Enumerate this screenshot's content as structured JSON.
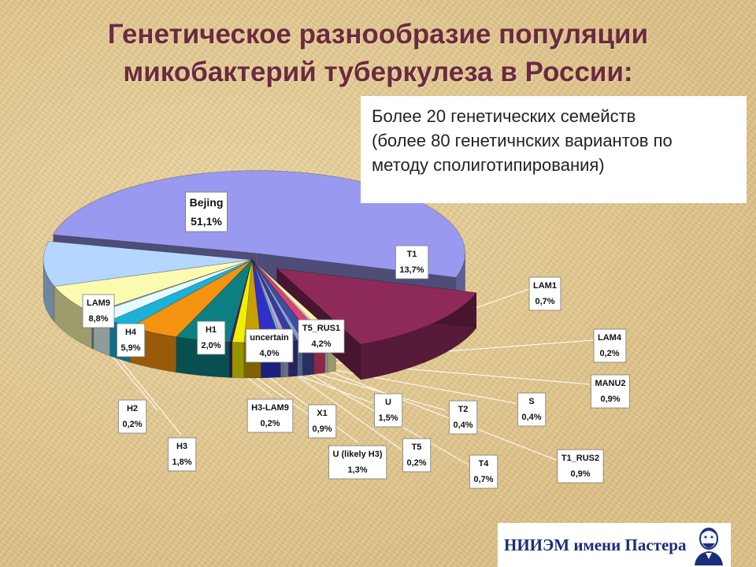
{
  "slide": {
    "title_line1": "Генетическое разнообразие популяции",
    "title_line2": "микобактерий туберкулеза в России:",
    "info_line1": "Более 20 генетических семейств",
    "info_line2": "(более 80 генетичнских вариантов по",
    "info_line3": "методу сполиготипирования)",
    "logo_text": "НИИЭМ имени Пастера",
    "logo_icon": "pasteur-portrait-icon"
  },
  "chart_data": {
    "type": "pie",
    "title": "",
    "three_d": true,
    "exploded_slices": [
      "Bejing",
      "T1"
    ],
    "slices": [
      {
        "name": "Bejing",
        "value": 51.1,
        "label": "51,1%",
        "color": "#9a99f0"
      },
      {
        "name": "T1",
        "value": 13.7,
        "label": "13,7%",
        "color": "#8d2a5a"
      },
      {
        "name": "LAM1",
        "value": 0.7,
        "label": "0,7%",
        "color": "#fff2b2"
      },
      {
        "name": "LAM4",
        "value": 0.2,
        "label": "0,2%",
        "color": "#cfe6ff"
      },
      {
        "name": "MANU2",
        "value": 0.9,
        "label": "0,9%",
        "color": "#e04070"
      },
      {
        "name": "T1_RUS2",
        "value": 0.9,
        "label": "0,9%",
        "color": "#3f4ca0"
      },
      {
        "name": "S",
        "value": 0.4,
        "label": "0,4%",
        "color": "#7ea0d8"
      },
      {
        "name": "T4",
        "value": 0.7,
        "label": "0,7%",
        "color": "#3a3a9a"
      },
      {
        "name": "T2",
        "value": 0.4,
        "label": "0,4%",
        "color": "#b0a7e6"
      },
      {
        "name": "T5",
        "value": 0.2,
        "label": "0,2%",
        "color": "#80c8b8"
      },
      {
        "name": "U",
        "value": 1.5,
        "label": "1,5%",
        "color": "#3030c8"
      },
      {
        "name": "U (likely H3)",
        "value": 1.3,
        "label": "1,3%",
        "color": "#c8a000"
      },
      {
        "name": "X1",
        "value": 0.9,
        "label": "0,9%",
        "color": "#f0f000"
      },
      {
        "name": "H3-LAM9",
        "value": 0.2,
        "label": "0,2%",
        "color": "#4a1a70"
      },
      {
        "name": "T5_RUS1",
        "value": 4.2,
        "label": "4,2%",
        "color": "#0d7f82"
      },
      {
        "name": "uncertain",
        "value": 4.0,
        "label": "4,0%",
        "color": "#f3930f"
      },
      {
        "name": "H1",
        "value": 2.0,
        "label": "2,0%",
        "color": "#1bb1d8"
      },
      {
        "name": "H3",
        "value": 1.8,
        "label": "1,8%",
        "color": "#e6fbff"
      },
      {
        "name": "H2",
        "value": 0.2,
        "label": "0,2%",
        "color": "#7fa0b0"
      },
      {
        "name": "H4",
        "value": 5.9,
        "label": "5,9%",
        "color": "#fbfbb0"
      },
      {
        "name": "LAM9",
        "value": 8.8,
        "label": "8,8%",
        "color": "#b5d6ff"
      }
    ]
  }
}
